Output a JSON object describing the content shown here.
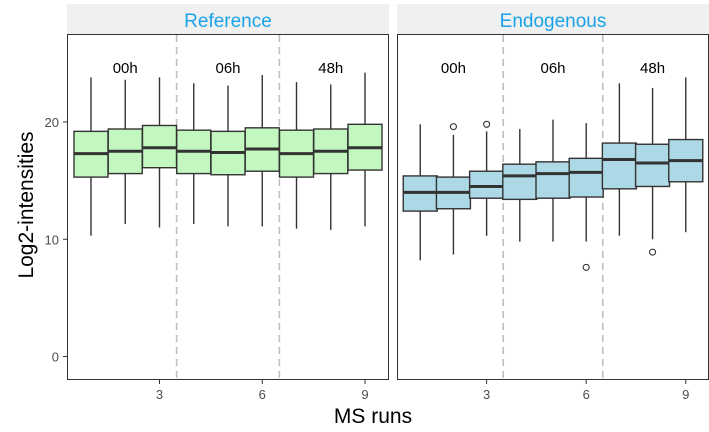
{
  "chart_data": {
    "type": "boxplot",
    "xlabel": "MS runs",
    "ylabel": "Log2-intensities",
    "ylim": [
      -2,
      27.5
    ],
    "xlim": [
      0.3,
      9.7
    ],
    "x_ticks": [
      3,
      6,
      9
    ],
    "y_ticks": [
      0,
      10,
      20
    ],
    "grid": false,
    "separators": [
      3.5,
      6.5
    ],
    "time_labels": [
      {
        "x": 2,
        "label": "00h"
      },
      {
        "x": 5,
        "label": "06h"
      },
      {
        "x": 8,
        "label": "48h"
      }
    ],
    "panels": [
      {
        "name": "Reference",
        "fill": "#c3f7c0",
        "boxes": [
          {
            "run": 1,
            "whislo": 10.3,
            "q1": 15.3,
            "median": 17.3,
            "q3": 19.2,
            "whishi": 23.8,
            "outliers": []
          },
          {
            "run": 2,
            "whislo": 11.3,
            "q1": 15.6,
            "median": 17.5,
            "q3": 19.4,
            "whishi": 23.6,
            "outliers": []
          },
          {
            "run": 3,
            "whislo": 11.0,
            "q1": 16.1,
            "median": 17.8,
            "q3": 19.7,
            "whishi": 23.8,
            "outliers": []
          },
          {
            "run": 4,
            "whislo": 11.3,
            "q1": 15.6,
            "median": 17.5,
            "q3": 19.3,
            "whishi": 23.3,
            "outliers": []
          },
          {
            "run": 5,
            "whislo": 11.1,
            "q1": 15.5,
            "median": 17.4,
            "q3": 19.2,
            "whishi": 23.1,
            "outliers": []
          },
          {
            "run": 6,
            "whislo": 11.1,
            "q1": 15.8,
            "median": 17.7,
            "q3": 19.5,
            "whishi": 24.0,
            "outliers": []
          },
          {
            "run": 7,
            "whislo": 10.9,
            "q1": 15.3,
            "median": 17.3,
            "q3": 19.3,
            "whishi": 23.4,
            "outliers": []
          },
          {
            "run": 8,
            "whislo": 10.8,
            "q1": 15.6,
            "median": 17.5,
            "q3": 19.4,
            "whishi": 23.2,
            "outliers": []
          },
          {
            "run": 9,
            "whislo": 11.1,
            "q1": 15.9,
            "median": 17.8,
            "q3": 19.8,
            "whishi": 24.2,
            "outliers": []
          }
        ]
      },
      {
        "name": "Endogenous",
        "fill": "#add8e6",
        "boxes": [
          {
            "run": 1,
            "whislo": 8.2,
            "q1": 12.4,
            "median": 14.0,
            "q3": 15.4,
            "whishi": 19.8,
            "outliers": []
          },
          {
            "run": 2,
            "whislo": 8.7,
            "q1": 12.6,
            "median": 14.0,
            "q3": 15.3,
            "whishi": 18.9,
            "outliers": [
              19.6
            ]
          },
          {
            "run": 3,
            "whislo": 10.3,
            "q1": 13.5,
            "median": 14.5,
            "q3": 15.8,
            "whishi": 19.2,
            "outliers": [
              19.8
            ]
          },
          {
            "run": 4,
            "whislo": 9.8,
            "q1": 13.4,
            "median": 15.4,
            "q3": 16.4,
            "whishi": 19.4,
            "outliers": []
          },
          {
            "run": 5,
            "whislo": 9.8,
            "q1": 13.5,
            "median": 15.6,
            "q3": 16.6,
            "whishi": 20.2,
            "outliers": []
          },
          {
            "run": 6,
            "whislo": 9.8,
            "q1": 13.6,
            "median": 15.7,
            "q3": 16.9,
            "whishi": 19.9,
            "outliers": [
              7.6
            ]
          },
          {
            "run": 7,
            "whislo": 10.3,
            "q1": 14.3,
            "median": 16.8,
            "q3": 18.2,
            "whishi": 23.3,
            "outliers": []
          },
          {
            "run": 8,
            "whislo": 10.0,
            "q1": 14.5,
            "median": 16.5,
            "q3": 18.1,
            "whishi": 22.9,
            "outliers": [
              8.9
            ]
          },
          {
            "run": 9,
            "whislo": 10.6,
            "q1": 14.9,
            "median": 16.7,
            "q3": 18.5,
            "whishi": 23.8,
            "outliers": []
          }
        ]
      }
    ],
    "colors": {
      "strip_bg": "#f0f0f0",
      "strip_text": "#1aa3e8",
      "separator": "#bfbfbf",
      "box_line": "#333333",
      "panel_border": "#333333"
    }
  }
}
